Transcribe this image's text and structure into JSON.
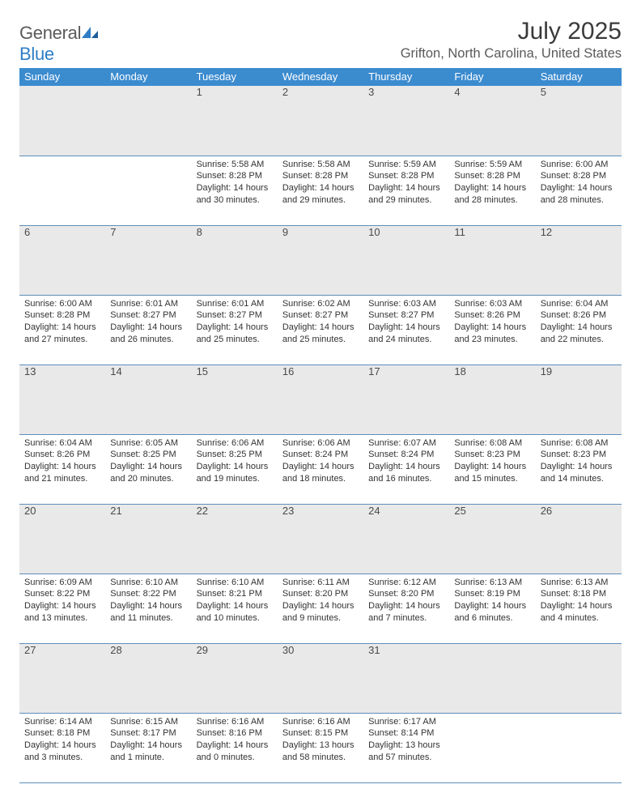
{
  "brand": {
    "part1": "General",
    "part2": "Blue"
  },
  "title": "July 2025",
  "location": "Grifton, North Carolina, United States",
  "colors": {
    "header_bg": "#3b8bcf",
    "header_text": "#ffffff",
    "daynum_bg": "#e9e9e9",
    "rule": "#5d8fbb",
    "brand_gray": "#5a5a5a",
    "brand_blue": "#2f7dc4"
  },
  "day_headers": [
    "Sunday",
    "Monday",
    "Tuesday",
    "Wednesday",
    "Thursday",
    "Friday",
    "Saturday"
  ],
  "weeks": [
    {
      "nums": [
        "",
        "",
        "1",
        "2",
        "3",
        "4",
        "5"
      ],
      "cells": [
        [],
        [],
        [
          "Sunrise: 5:58 AM",
          "Sunset: 8:28 PM",
          "Daylight: 14 hours",
          "and 30 minutes."
        ],
        [
          "Sunrise: 5:58 AM",
          "Sunset: 8:28 PM",
          "Daylight: 14 hours",
          "and 29 minutes."
        ],
        [
          "Sunrise: 5:59 AM",
          "Sunset: 8:28 PM",
          "Daylight: 14 hours",
          "and 29 minutes."
        ],
        [
          "Sunrise: 5:59 AM",
          "Sunset: 8:28 PM",
          "Daylight: 14 hours",
          "and 28 minutes."
        ],
        [
          "Sunrise: 6:00 AM",
          "Sunset: 8:28 PM",
          "Daylight: 14 hours",
          "and 28 minutes."
        ]
      ]
    },
    {
      "nums": [
        "6",
        "7",
        "8",
        "9",
        "10",
        "11",
        "12"
      ],
      "cells": [
        [
          "Sunrise: 6:00 AM",
          "Sunset: 8:28 PM",
          "Daylight: 14 hours",
          "and 27 minutes."
        ],
        [
          "Sunrise: 6:01 AM",
          "Sunset: 8:27 PM",
          "Daylight: 14 hours",
          "and 26 minutes."
        ],
        [
          "Sunrise: 6:01 AM",
          "Sunset: 8:27 PM",
          "Daylight: 14 hours",
          "and 25 minutes."
        ],
        [
          "Sunrise: 6:02 AM",
          "Sunset: 8:27 PM",
          "Daylight: 14 hours",
          "and 25 minutes."
        ],
        [
          "Sunrise: 6:03 AM",
          "Sunset: 8:27 PM",
          "Daylight: 14 hours",
          "and 24 minutes."
        ],
        [
          "Sunrise: 6:03 AM",
          "Sunset: 8:26 PM",
          "Daylight: 14 hours",
          "and 23 minutes."
        ],
        [
          "Sunrise: 6:04 AM",
          "Sunset: 8:26 PM",
          "Daylight: 14 hours",
          "and 22 minutes."
        ]
      ]
    },
    {
      "nums": [
        "13",
        "14",
        "15",
        "16",
        "17",
        "18",
        "19"
      ],
      "cells": [
        [
          "Sunrise: 6:04 AM",
          "Sunset: 8:26 PM",
          "Daylight: 14 hours",
          "and 21 minutes."
        ],
        [
          "Sunrise: 6:05 AM",
          "Sunset: 8:25 PM",
          "Daylight: 14 hours",
          "and 20 minutes."
        ],
        [
          "Sunrise: 6:06 AM",
          "Sunset: 8:25 PM",
          "Daylight: 14 hours",
          "and 19 minutes."
        ],
        [
          "Sunrise: 6:06 AM",
          "Sunset: 8:24 PM",
          "Daylight: 14 hours",
          "and 18 minutes."
        ],
        [
          "Sunrise: 6:07 AM",
          "Sunset: 8:24 PM",
          "Daylight: 14 hours",
          "and 16 minutes."
        ],
        [
          "Sunrise: 6:08 AM",
          "Sunset: 8:23 PM",
          "Daylight: 14 hours",
          "and 15 minutes."
        ],
        [
          "Sunrise: 6:08 AM",
          "Sunset: 8:23 PM",
          "Daylight: 14 hours",
          "and 14 minutes."
        ]
      ]
    },
    {
      "nums": [
        "20",
        "21",
        "22",
        "23",
        "24",
        "25",
        "26"
      ],
      "cells": [
        [
          "Sunrise: 6:09 AM",
          "Sunset: 8:22 PM",
          "Daylight: 14 hours",
          "and 13 minutes."
        ],
        [
          "Sunrise: 6:10 AM",
          "Sunset: 8:22 PM",
          "Daylight: 14 hours",
          "and 11 minutes."
        ],
        [
          "Sunrise: 6:10 AM",
          "Sunset: 8:21 PM",
          "Daylight: 14 hours",
          "and 10 minutes."
        ],
        [
          "Sunrise: 6:11 AM",
          "Sunset: 8:20 PM",
          "Daylight: 14 hours",
          "and 9 minutes."
        ],
        [
          "Sunrise: 6:12 AM",
          "Sunset: 8:20 PM",
          "Daylight: 14 hours",
          "and 7 minutes."
        ],
        [
          "Sunrise: 6:13 AM",
          "Sunset: 8:19 PM",
          "Daylight: 14 hours",
          "and 6 minutes."
        ],
        [
          "Sunrise: 6:13 AM",
          "Sunset: 8:18 PM",
          "Daylight: 14 hours",
          "and 4 minutes."
        ]
      ]
    },
    {
      "nums": [
        "27",
        "28",
        "29",
        "30",
        "31",
        "",
        ""
      ],
      "cells": [
        [
          "Sunrise: 6:14 AM",
          "Sunset: 8:18 PM",
          "Daylight: 14 hours",
          "and 3 minutes."
        ],
        [
          "Sunrise: 6:15 AM",
          "Sunset: 8:17 PM",
          "Daylight: 14 hours",
          "and 1 minute."
        ],
        [
          "Sunrise: 6:16 AM",
          "Sunset: 8:16 PM",
          "Daylight: 14 hours",
          "and 0 minutes."
        ],
        [
          "Sunrise: 6:16 AM",
          "Sunset: 8:15 PM",
          "Daylight: 13 hours",
          "and 58 minutes."
        ],
        [
          "Sunrise: 6:17 AM",
          "Sunset: 8:14 PM",
          "Daylight: 13 hours",
          "and 57 minutes."
        ],
        [],
        []
      ]
    }
  ]
}
